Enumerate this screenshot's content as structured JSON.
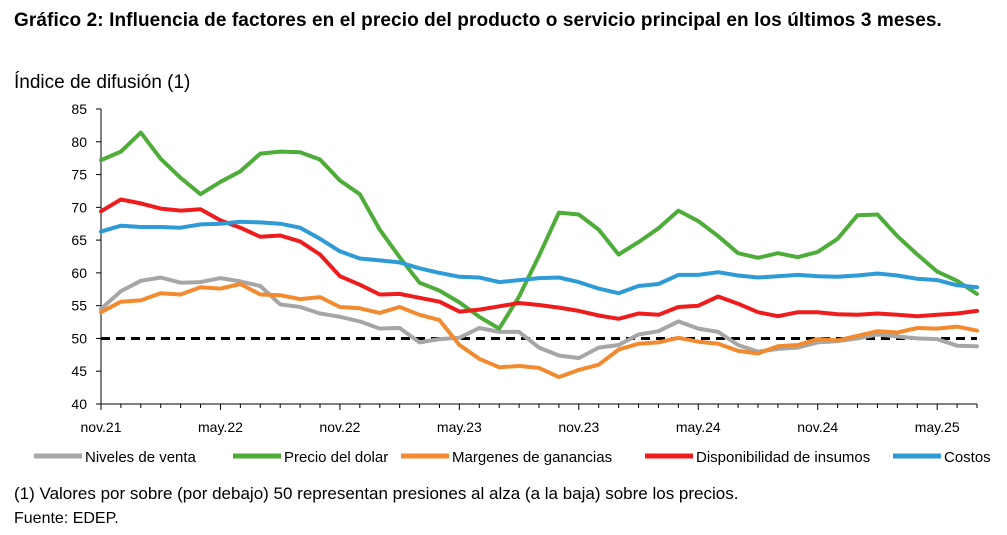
{
  "chart_data": {
    "type": "line",
    "title": "Gráfico 2: Influencia de factores en el precio del producto o servicio principal en los últimos 3 meses.",
    "ylabel": "Índice de difusión (1)",
    "xlabel": "",
    "ylim": [
      40,
      85
    ],
    "yticks": [
      40,
      45,
      50,
      55,
      60,
      65,
      70,
      75,
      80,
      85
    ],
    "x_tick_labels": [
      {
        "index": 0,
        "label": "nov.21"
      },
      {
        "index": 6,
        "label": "may.22"
      },
      {
        "index": 12,
        "label": "nov.22"
      },
      {
        "index": 18,
        "label": "may.23"
      },
      {
        "index": 24,
        "label": "nov.23"
      },
      {
        "index": 30,
        "label": "may.24"
      },
      {
        "index": 36,
        "label": "nov.24"
      },
      {
        "index": 42,
        "label": "may.25"
      }
    ],
    "reference_line": {
      "value": 50,
      "style": "dashed",
      "color": "#000000"
    },
    "grid": false,
    "legend_position": "bottom",
    "series": [
      {
        "name": "Niveles de venta",
        "color": "#a6a6a6",
        "values": [
          54.5,
          57.2,
          58.8,
          59.3,
          58.5,
          58.6,
          59.2,
          58.7,
          58.0,
          55.2,
          54.8,
          53.8,
          53.3,
          52.6,
          51.5,
          51.6,
          49.4,
          49.9,
          50.1,
          51.6,
          51.0,
          51.0,
          48.6,
          47.4,
          47.0,
          48.6,
          49.0,
          50.6,
          51.1,
          52.6,
          51.5,
          51.0,
          49.0,
          48.0,
          48.4,
          48.6,
          49.4,
          49.6,
          50.0,
          50.6,
          50.3,
          50.0,
          49.9,
          48.9,
          48.8
        ]
      },
      {
        "name": "Precio del dolar",
        "color": "#4eac38",
        "values": [
          77.2,
          78.5,
          81.4,
          77.4,
          74.5,
          72.0,
          73.9,
          75.5,
          78.2,
          78.5,
          78.4,
          77.3,
          74.1,
          72.0,
          66.6,
          62.4,
          58.5,
          57.3,
          55.5,
          53.3,
          51.5,
          56.4,
          62.6,
          69.2,
          68.9,
          66.6,
          62.8,
          64.7,
          66.8,
          69.5,
          67.9,
          65.6,
          63.0,
          62.3,
          63.0,
          62.4,
          63.2,
          65.2,
          68.8,
          68.9,
          65.6,
          62.8,
          60.2,
          58.8,
          56.8
        ]
      },
      {
        "name": "Margenes de ganancias",
        "color": "#f28b30",
        "values": [
          54.0,
          55.6,
          55.8,
          56.9,
          56.7,
          57.8,
          57.6,
          58.3,
          56.7,
          56.6,
          56.0,
          56.3,
          54.8,
          54.6,
          53.9,
          54.8,
          53.6,
          52.8,
          49.0,
          46.9,
          45.6,
          45.8,
          45.5,
          44.1,
          45.2,
          46.0,
          48.3,
          49.2,
          49.4,
          50.1,
          49.5,
          49.2,
          48.1,
          47.7,
          48.8,
          49.0,
          49.9,
          49.7,
          50.4,
          51.1,
          50.9,
          51.6,
          51.5,
          51.8,
          51.2
        ]
      },
      {
        "name": "Disponibilidad de insumos",
        "color": "#ee1c1c",
        "values": [
          69.4,
          71.2,
          70.6,
          69.8,
          69.5,
          69.7,
          68.0,
          66.9,
          65.5,
          65.7,
          64.8,
          62.8,
          59.5,
          58.2,
          56.7,
          56.8,
          56.2,
          55.6,
          54.1,
          54.4,
          54.9,
          55.4,
          55.1,
          54.7,
          54.2,
          53.5,
          53.0,
          53.8,
          53.6,
          54.8,
          55.0,
          56.4,
          55.3,
          54.0,
          53.4,
          54.0,
          54.0,
          53.7,
          53.6,
          53.8,
          53.6,
          53.4,
          53.6,
          53.8,
          54.2
        ]
      },
      {
        "name": "Costos",
        "color": "#2e9bd6",
        "values": [
          66.3,
          67.2,
          67.0,
          67.0,
          66.9,
          67.4,
          67.5,
          67.8,
          67.7,
          67.5,
          66.9,
          65.2,
          63.3,
          62.2,
          61.9,
          61.6,
          60.7,
          60.0,
          59.4,
          59.3,
          58.6,
          58.9,
          59.2,
          59.3,
          58.6,
          57.6,
          56.9,
          58.0,
          58.3,
          59.7,
          59.7,
          60.1,
          59.6,
          59.3,
          59.5,
          59.7,
          59.5,
          59.4,
          59.6,
          59.9,
          59.6,
          59.1,
          58.9,
          58.1,
          57.8
        ]
      }
    ]
  },
  "page": {
    "title": "Gráfico 2: Influencia de factores en el precio del producto o servicio principal en los últimos 3 meses.",
    "ylabel": "Índice de difusión (1)",
    "note": "(1) Valores por sobre (por debajo) 50 representan presiones al alza (a la baja) sobre los precios.",
    "source": "Fuente: EDEP."
  }
}
